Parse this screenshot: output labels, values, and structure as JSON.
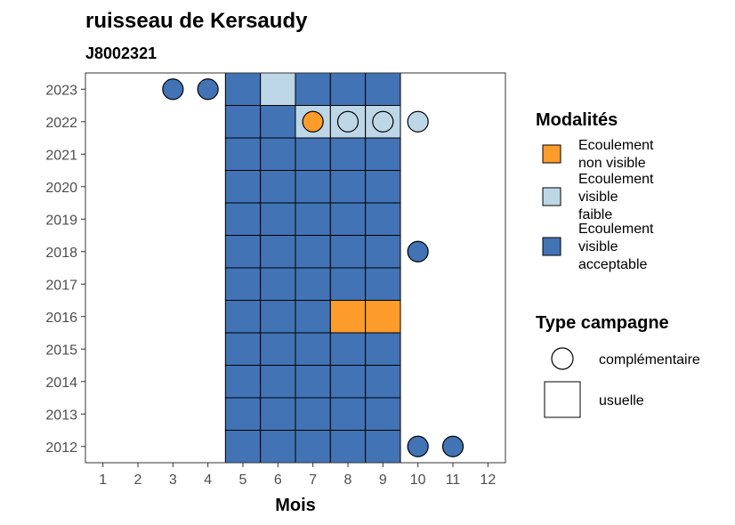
{
  "chart_data": {
    "type": "heatmap",
    "title": "ruisseau de Kersaudy",
    "subtitle": "J8002321",
    "xlabel": "Mois",
    "ylabel": "",
    "x_ticks": [
      "1",
      "2",
      "3",
      "4",
      "5",
      "6",
      "7",
      "8",
      "9",
      "10",
      "11",
      "12"
    ],
    "y_ticks": [
      "2012",
      "2013",
      "2014",
      "2015",
      "2016",
      "2017",
      "2018",
      "2019",
      "2020",
      "2021",
      "2022",
      "2023"
    ],
    "xlim": [
      0.5,
      12.5
    ],
    "ylim": [
      2011.5,
      2023.5
    ],
    "grid": false,
    "legend_position": "right",
    "colors": {
      "non_visible": "#fd9b2b",
      "faible": "#bdd7e7",
      "acceptable": "#4173b5"
    },
    "legend": {
      "modalites_title": "Modalités",
      "modalites": [
        {
          "key": "non_visible",
          "lines": [
            "Ecoulement",
            "non visible"
          ]
        },
        {
          "key": "faible",
          "lines": [
            "Ecoulement",
            "visible",
            "faible"
          ]
        },
        {
          "key": "acceptable",
          "lines": [
            "Ecoulement",
            "visible",
            "acceptable"
          ]
        }
      ],
      "type_title": "Type campagne",
      "types": [
        {
          "shape": "circle",
          "label": "complémentaire"
        },
        {
          "shape": "square",
          "label": "usuelle"
        }
      ]
    },
    "points": [
      {
        "year": 2012,
        "month": 5,
        "type": "usuelle",
        "modalite": "acceptable"
      },
      {
        "year": 2012,
        "month": 6,
        "type": "usuelle",
        "modalite": "acceptable"
      },
      {
        "year": 2012,
        "month": 7,
        "type": "usuelle",
        "modalite": "acceptable"
      },
      {
        "year": 2012,
        "month": 8,
        "type": "usuelle",
        "modalite": "acceptable"
      },
      {
        "year": 2012,
        "month": 9,
        "type": "usuelle",
        "modalite": "acceptable"
      },
      {
        "year": 2012,
        "month": 10,
        "type": "complémentaire",
        "modalite": "acceptable"
      },
      {
        "year": 2012,
        "month": 11,
        "type": "complémentaire",
        "modalite": "acceptable"
      },
      {
        "year": 2013,
        "month": 5,
        "type": "usuelle",
        "modalite": "acceptable"
      },
      {
        "year": 2013,
        "month": 6,
        "type": "usuelle",
        "modalite": "acceptable"
      },
      {
        "year": 2013,
        "month": 7,
        "type": "usuelle",
        "modalite": "acceptable"
      },
      {
        "year": 2013,
        "month": 8,
        "type": "usuelle",
        "modalite": "acceptable"
      },
      {
        "year": 2013,
        "month": 9,
        "type": "usuelle",
        "modalite": "acceptable"
      },
      {
        "year": 2014,
        "month": 5,
        "type": "usuelle",
        "modalite": "acceptable"
      },
      {
        "year": 2014,
        "month": 6,
        "type": "usuelle",
        "modalite": "acceptable"
      },
      {
        "year": 2014,
        "month": 7,
        "type": "usuelle",
        "modalite": "acceptable"
      },
      {
        "year": 2014,
        "month": 8,
        "type": "usuelle",
        "modalite": "acceptable"
      },
      {
        "year": 2014,
        "month": 9,
        "type": "usuelle",
        "modalite": "acceptable"
      },
      {
        "year": 2015,
        "month": 5,
        "type": "usuelle",
        "modalite": "acceptable"
      },
      {
        "year": 2015,
        "month": 6,
        "type": "usuelle",
        "modalite": "acceptable"
      },
      {
        "year": 2015,
        "month": 7,
        "type": "usuelle",
        "modalite": "acceptable"
      },
      {
        "year": 2015,
        "month": 8,
        "type": "usuelle",
        "modalite": "acceptable"
      },
      {
        "year": 2015,
        "month": 9,
        "type": "usuelle",
        "modalite": "acceptable"
      },
      {
        "year": 2016,
        "month": 5,
        "type": "usuelle",
        "modalite": "acceptable"
      },
      {
        "year": 2016,
        "month": 6,
        "type": "usuelle",
        "modalite": "acceptable"
      },
      {
        "year": 2016,
        "month": 7,
        "type": "usuelle",
        "modalite": "acceptable"
      },
      {
        "year": 2016,
        "month": 8,
        "type": "usuelle",
        "modalite": "non_visible"
      },
      {
        "year": 2016,
        "month": 9,
        "type": "usuelle",
        "modalite": "non_visible"
      },
      {
        "year": 2017,
        "month": 5,
        "type": "usuelle",
        "modalite": "acceptable"
      },
      {
        "year": 2017,
        "month": 6,
        "type": "usuelle",
        "modalite": "acceptable"
      },
      {
        "year": 2017,
        "month": 7,
        "type": "usuelle",
        "modalite": "acceptable"
      },
      {
        "year": 2017,
        "month": 8,
        "type": "usuelle",
        "modalite": "acceptable"
      },
      {
        "year": 2017,
        "month": 9,
        "type": "usuelle",
        "modalite": "acceptable"
      },
      {
        "year": 2018,
        "month": 5,
        "type": "usuelle",
        "modalite": "acceptable"
      },
      {
        "year": 2018,
        "month": 6,
        "type": "usuelle",
        "modalite": "acceptable"
      },
      {
        "year": 2018,
        "month": 7,
        "type": "usuelle",
        "modalite": "acceptable"
      },
      {
        "year": 2018,
        "month": 8,
        "type": "usuelle",
        "modalite": "acceptable"
      },
      {
        "year": 2018,
        "month": 9,
        "type": "usuelle",
        "modalite": "acceptable"
      },
      {
        "year": 2018,
        "month": 10,
        "type": "complémentaire",
        "modalite": "acceptable"
      },
      {
        "year": 2019,
        "month": 5,
        "type": "usuelle",
        "modalite": "acceptable"
      },
      {
        "year": 2019,
        "month": 6,
        "type": "usuelle",
        "modalite": "acceptable"
      },
      {
        "year": 2019,
        "month": 7,
        "type": "usuelle",
        "modalite": "acceptable"
      },
      {
        "year": 2019,
        "month": 8,
        "type": "usuelle",
        "modalite": "acceptable"
      },
      {
        "year": 2019,
        "month": 9,
        "type": "usuelle",
        "modalite": "acceptable"
      },
      {
        "year": 2020,
        "month": 5,
        "type": "usuelle",
        "modalite": "acceptable"
      },
      {
        "year": 2020,
        "month": 6,
        "type": "usuelle",
        "modalite": "acceptable"
      },
      {
        "year": 2020,
        "month": 7,
        "type": "usuelle",
        "modalite": "acceptable"
      },
      {
        "year": 2020,
        "month": 8,
        "type": "usuelle",
        "modalite": "acceptable"
      },
      {
        "year": 2020,
        "month": 9,
        "type": "usuelle",
        "modalite": "acceptable"
      },
      {
        "year": 2021,
        "month": 5,
        "type": "usuelle",
        "modalite": "acceptable"
      },
      {
        "year": 2021,
        "month": 6,
        "type": "usuelle",
        "modalite": "acceptable"
      },
      {
        "year": 2021,
        "month": 7,
        "type": "usuelle",
        "modalite": "acceptable"
      },
      {
        "year": 2021,
        "month": 8,
        "type": "usuelle",
        "modalite": "acceptable"
      },
      {
        "year": 2021,
        "month": 9,
        "type": "usuelle",
        "modalite": "acceptable"
      },
      {
        "year": 2022,
        "month": 5,
        "type": "usuelle",
        "modalite": "acceptable"
      },
      {
        "year": 2022,
        "month": 6,
        "type": "usuelle",
        "modalite": "acceptable"
      },
      {
        "year": 2022,
        "month": 7,
        "type": "usuelle",
        "modalite": "faible"
      },
      {
        "year": 2022,
        "month": 8,
        "type": "usuelle",
        "modalite": "faible"
      },
      {
        "year": 2022,
        "month": 9,
        "type": "usuelle",
        "modalite": "faible"
      },
      {
        "year": 2022,
        "month": 7,
        "type": "complémentaire",
        "modalite": "non_visible"
      },
      {
        "year": 2022,
        "month": 8,
        "type": "complémentaire",
        "modalite": "faible"
      },
      {
        "year": 2022,
        "month": 9,
        "type": "complémentaire",
        "modalite": "faible"
      },
      {
        "year": 2022,
        "month": 10,
        "type": "complémentaire",
        "modalite": "faible"
      },
      {
        "year": 2023,
        "month": 3,
        "type": "complémentaire",
        "modalite": "acceptable"
      },
      {
        "year": 2023,
        "month": 4,
        "type": "complémentaire",
        "modalite": "acceptable"
      },
      {
        "year": 2023,
        "month": 5,
        "type": "usuelle",
        "modalite": "acceptable"
      },
      {
        "year": 2023,
        "month": 6,
        "type": "usuelle",
        "modalite": "faible"
      },
      {
        "year": 2023,
        "month": 7,
        "type": "usuelle",
        "modalite": "acceptable"
      },
      {
        "year": 2023,
        "month": 8,
        "type": "usuelle",
        "modalite": "acceptable"
      },
      {
        "year": 2023,
        "month": 9,
        "type": "usuelle",
        "modalite": "acceptable"
      }
    ]
  }
}
